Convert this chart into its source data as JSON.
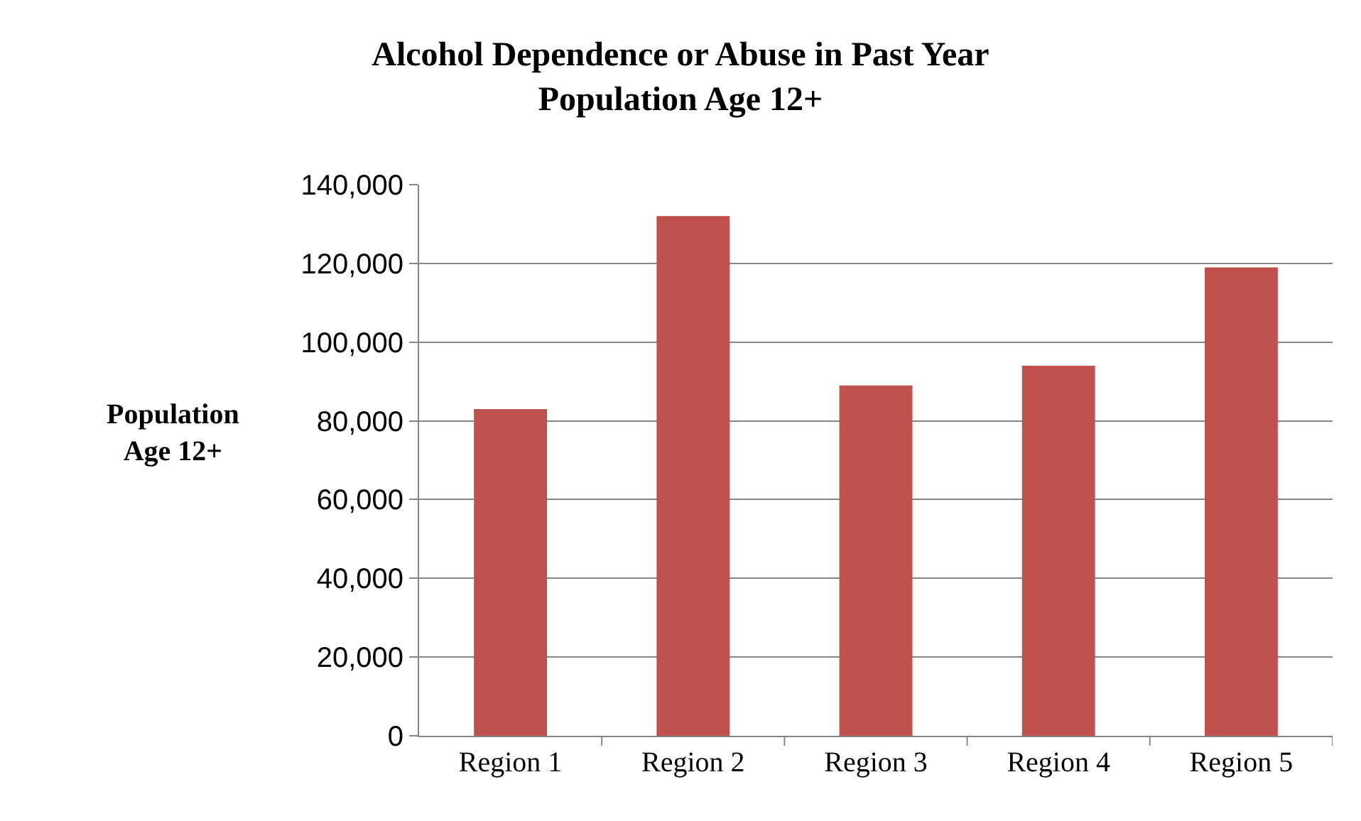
{
  "chart_data": {
    "type": "bar",
    "title": "Alcohol Dependence or Abuse in Past Year\nPopulation Age 12+",
    "ylabel": "Population\nAge 12+",
    "categories": [
      "Region 1",
      "Region 2",
      "Region 3",
      "Region 4",
      "Region 5"
    ],
    "values": [
      83000,
      132000,
      89000,
      94000,
      119000
    ],
    "color": "#c0504d",
    "ylim": [
      0,
      140000
    ],
    "yticks": [
      {
        "value": 0,
        "label": "0"
      },
      {
        "value": 20000,
        "label": "20,000"
      },
      {
        "value": 40000,
        "label": "40,000"
      },
      {
        "value": 60000,
        "label": "60,000"
      },
      {
        "value": 80000,
        "label": "80,000"
      },
      {
        "value": 100000,
        "label": "100,000"
      },
      {
        "value": 120000,
        "label": "120,000"
      },
      {
        "value": 140000,
        "label": "140,000"
      }
    ],
    "grid": "y"
  }
}
